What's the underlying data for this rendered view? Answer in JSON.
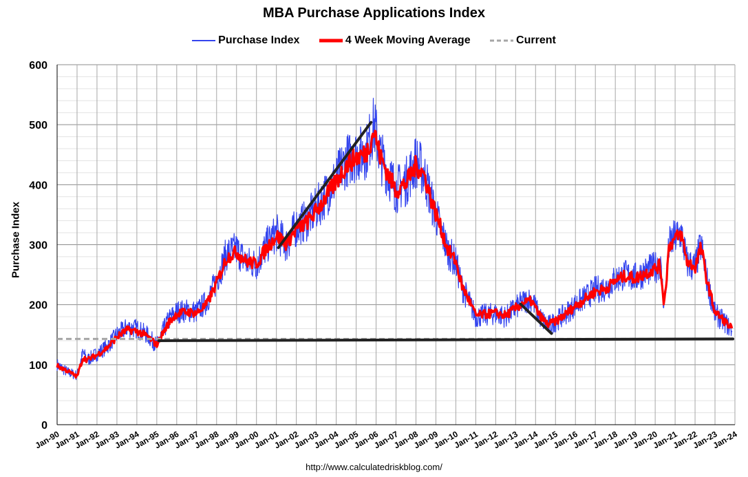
{
  "chart_data": {
    "type": "line",
    "title": "MBA Purchase Applications Index",
    "ylabel": "Purchase Index",
    "xlabel": "",
    "ylim": [
      0,
      600
    ],
    "yticks": [
      0,
      100,
      200,
      300,
      400,
      500,
      600
    ],
    "x_ticks": [
      "Jan-90",
      "Jan-91",
      "Jan-92",
      "Jan-93",
      "Jan-94",
      "Jan-95",
      "Jan-96",
      "Jan-97",
      "Jan-98",
      "Jan-99",
      "Jan-00",
      "Jan-01",
      "Jan-02",
      "Jan-03",
      "Jan-04",
      "Jan-05",
      "Jan-06",
      "Jan-07",
      "Jan-08",
      "Jan-09",
      "Jan-10",
      "Jan-11",
      "Jan-12",
      "Jan-13",
      "Jan-14",
      "Jan-15",
      "Jan-16",
      "Jan-17",
      "Jan-18",
      "Jan-19",
      "Jan-20",
      "Jan-21",
      "Jan-22",
      "Jan-23",
      "Jan-24"
    ],
    "x_range": [
      "1990-01",
      "2024-01"
    ],
    "grid": true,
    "legend_position": "top",
    "series": [
      {
        "name": "Purchase Index",
        "color": "#3344ee",
        "style": "thin-noisy",
        "x": [
          1990.0,
          1990.5,
          1991.0,
          1991.3,
          1991.5,
          1992.0,
          1992.5,
          1993.0,
          1993.5,
          1994.0,
          1994.5,
          1995.0,
          1995.3,
          1995.6,
          1996.0,
          1996.5,
          1997.0,
          1997.5,
          1998.0,
          1998.5,
          1999.0,
          1999.5,
          2000.0,
          2000.5,
          2001.0,
          2001.5,
          2002.0,
          2002.5,
          2003.0,
          2003.5,
          2004.0,
          2004.5,
          2005.0,
          2005.5,
          2005.9,
          2006.2,
          2006.6,
          2007.0,
          2007.5,
          2008.0,
          2008.4,
          2008.8,
          2009.2,
          2009.6,
          2010.0,
          2010.3,
          2010.6,
          2011.0,
          2011.5,
          2012.0,
          2012.5,
          2013.0,
          2013.4,
          2013.8,
          2014.2,
          2014.6,
          2015.0,
          2015.5,
          2016.0,
          2016.5,
          2017.0,
          2017.5,
          2018.0,
          2018.5,
          2019.0,
          2019.5,
          2020.0,
          2020.25,
          2020.45,
          2020.7,
          2021.0,
          2021.3,
          2021.6,
          2022.0,
          2022.3,
          2022.6,
          2023.0,
          2023.5,
          2023.85
        ],
        "y": [
          100,
          88,
          82,
          120,
          108,
          118,
          130,
          150,
          162,
          160,
          150,
          132,
          155,
          175,
          188,
          190,
          188,
          205,
          240,
          285,
          292,
          270,
          268,
          298,
          320,
          300,
          330,
          340,
          360,
          385,
          410,
          440,
          450,
          455,
          500,
          450,
          420,
          392,
          405,
          440,
          420,
          370,
          330,
          290,
          270,
          230,
          210,
          180,
          183,
          185,
          180,
          195,
          205,
          210,
          180,
          165,
          172,
          185,
          200,
          212,
          225,
          228,
          242,
          250,
          245,
          255,
          262,
          270,
          198,
          300,
          312,
          320,
          270,
          262,
          300,
          240,
          185,
          170,
          158
        ]
      },
      {
        "name": "4 Week Moving Average",
        "color": "#ff0000",
        "style": "thick",
        "x": [
          1990.0,
          1990.5,
          1991.0,
          1991.3,
          1991.5,
          1992.0,
          1992.5,
          1993.0,
          1993.5,
          1994.0,
          1994.5,
          1995.0,
          1995.3,
          1995.6,
          1996.0,
          1996.5,
          1997.0,
          1997.5,
          1998.0,
          1998.5,
          1999.0,
          1999.5,
          2000.0,
          2000.5,
          2001.0,
          2001.5,
          2002.0,
          2002.5,
          2003.0,
          2003.5,
          2004.0,
          2004.5,
          2005.0,
          2005.5,
          2005.9,
          2006.2,
          2006.6,
          2007.0,
          2007.5,
          2008.0,
          2008.4,
          2008.8,
          2009.2,
          2009.6,
          2010.0,
          2010.3,
          2010.6,
          2011.0,
          2011.5,
          2012.0,
          2012.5,
          2013.0,
          2013.4,
          2013.8,
          2014.2,
          2014.6,
          2015.0,
          2015.5,
          2016.0,
          2016.5,
          2017.0,
          2017.5,
          2018.0,
          2018.5,
          2019.0,
          2019.5,
          2020.0,
          2020.25,
          2020.45,
          2020.7,
          2021.0,
          2021.3,
          2021.6,
          2022.0,
          2022.3,
          2022.6,
          2023.0,
          2023.5,
          2023.85
        ],
        "y": [
          98,
          90,
          80,
          112,
          108,
          116,
          128,
          146,
          158,
          156,
          148,
          133,
          152,
          170,
          185,
          188,
          186,
          200,
          236,
          278,
          288,
          272,
          268,
          294,
          315,
          302,
          326,
          336,
          356,
          380,
          405,
          432,
          446,
          452,
          490,
          448,
          418,
          390,
          402,
          432,
          418,
          372,
          332,
          292,
          272,
          232,
          212,
          182,
          184,
          186,
          182,
          194,
          203,
          206,
          182,
          167,
          172,
          184,
          198,
          210,
          222,
          226,
          240,
          248,
          244,
          252,
          260,
          266,
          200,
          298,
          310,
          318,
          272,
          262,
          296,
          240,
          188,
          172,
          160
        ]
      },
      {
        "name": "Current",
        "color": "#a6a6a6",
        "style": "dashed",
        "x": [
          1990.0,
          2024.0
        ],
        "y": [
          143,
          143
        ]
      }
    ],
    "trend_lines": [
      {
        "color": "#222222",
        "x": [
          1995.1,
          2023.9
        ],
        "y": [
          140,
          143
        ]
      },
      {
        "color": "#222222",
        "x": [
          2001.1,
          2005.75
        ],
        "y": [
          295,
          504
        ]
      },
      {
        "color": "#222222",
        "x": [
          2013.25,
          2014.8
        ],
        "y": [
          201,
          152
        ]
      }
    ]
  },
  "source_text": "http://www.calculatedriskblog.com/"
}
